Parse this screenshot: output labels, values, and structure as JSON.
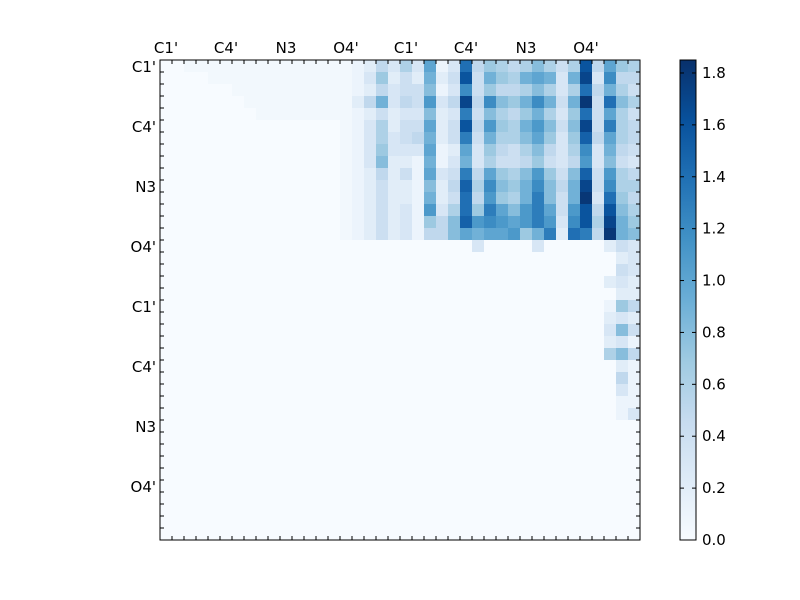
{
  "chart_data": {
    "type": "heatmap",
    "title": "",
    "xlabel": "",
    "ylabel": "",
    "x_tick_labels": [
      "C1'",
      "C4'",
      "N3",
      "O4'",
      "C1'",
      "C4'",
      "N3",
      "O4'"
    ],
    "y_tick_labels": [
      "C1'",
      "C4'",
      "N3",
      "O4'",
      "C1'",
      "C4'",
      "N3",
      "O4'"
    ],
    "rows": 40,
    "cols": 40,
    "colorbar": {
      "min": 0.0,
      "max": 1.85,
      "ticks": [
        "0.0",
        "0.2",
        "0.4",
        "0.6",
        "0.8",
        "1.0",
        "1.2",
        "1.4",
        "1.6",
        "1.8"
      ],
      "colormap": "Blues"
    },
    "colors": {
      "low": "#f7fbff",
      "high": "#08306b"
    },
    "upper_right_block": {
      "description_rows": [
        [
          0.05,
          0.1,
          0.2,
          0.5,
          0.3,
          0.6,
          0.3,
          1.0,
          0.1,
          0.3,
          1.4,
          0.5,
          0.7,
          0.6,
          0.5,
          0.6,
          0.8,
          0.6,
          0.4,
          0.6,
          1.6,
          0.5,
          1.0,
          0.7,
          0.6
        ],
        [
          0.05,
          0.1,
          0.3,
          0.7,
          0.2,
          0.4,
          0.2,
          0.9,
          0.2,
          0.4,
          1.6,
          0.4,
          0.9,
          0.7,
          0.6,
          0.9,
          1.0,
          0.9,
          0.3,
          0.9,
          1.7,
          0.3,
          1.2,
          0.5,
          0.5
        ],
        [
          0.05,
          0.1,
          0.2,
          0.5,
          0.3,
          0.4,
          0.4,
          0.8,
          0.1,
          0.3,
          1.2,
          0.4,
          0.7,
          0.5,
          0.5,
          0.6,
          0.8,
          0.6,
          0.3,
          0.6,
          1.4,
          0.5,
          0.9,
          0.6,
          0.4
        ],
        [
          0.05,
          0.2,
          0.5,
          0.9,
          0.3,
          0.5,
          0.4,
          1.1,
          0.3,
          0.5,
          1.7,
          0.5,
          1.2,
          0.8,
          0.7,
          0.9,
          1.2,
          0.9,
          0.4,
          0.9,
          1.8,
          0.4,
          1.4,
          0.8,
          0.6
        ],
        [
          0.05,
          0.1,
          0.2,
          0.4,
          0.2,
          0.3,
          0.3,
          0.8,
          0.2,
          0.3,
          1.3,
          0.4,
          0.8,
          0.6,
          0.5,
          0.7,
          0.9,
          0.6,
          0.3,
          0.7,
          1.4,
          0.4,
          1.0,
          0.6,
          0.4
        ],
        [
          0.05,
          0.1,
          0.3,
          0.6,
          0.2,
          0.4,
          0.4,
          1.0,
          0.2,
          0.4,
          1.6,
          0.5,
          1.1,
          0.7,
          0.6,
          0.9,
          1.1,
          0.8,
          0.4,
          0.8,
          1.7,
          0.4,
          1.3,
          0.6,
          0.5
        ],
        [
          0.05,
          0.1,
          0.3,
          0.6,
          0.3,
          0.4,
          0.5,
          0.9,
          0.2,
          0.4,
          1.3,
          0.4,
          0.9,
          0.6,
          0.6,
          0.8,
          1.0,
          0.7,
          0.3,
          0.7,
          1.5,
          0.5,
          1.0,
          0.6,
          0.5
        ],
        [
          0.05,
          0.1,
          0.3,
          0.7,
          0.3,
          0.3,
          0.3,
          1.0,
          0.1,
          0.2,
          1.0,
          0.3,
          0.7,
          0.5,
          0.4,
          0.6,
          0.8,
          0.5,
          0.3,
          0.6,
          1.2,
          0.3,
          0.9,
          0.5,
          0.4
        ],
        [
          0.05,
          0.1,
          0.3,
          0.8,
          0.2,
          0.2,
          0.1,
          0.9,
          0.1,
          0.3,
          0.9,
          0.3,
          0.6,
          0.4,
          0.4,
          0.5,
          0.7,
          0.4,
          0.3,
          0.5,
          1.1,
          0.3,
          0.8,
          0.4,
          0.3
        ],
        [
          0.05,
          0.1,
          0.2,
          0.5,
          0.2,
          0.4,
          0.1,
          1.0,
          0.3,
          0.4,
          1.3,
          0.5,
          1.0,
          0.7,
          0.6,
          0.8,
          1.1,
          0.7,
          0.4,
          0.8,
          1.5,
          0.4,
          1.1,
          0.6,
          0.5
        ],
        [
          0.05,
          0.1,
          0.2,
          0.4,
          0.2,
          0.2,
          0.1,
          0.8,
          0.2,
          0.5,
          1.5,
          0.6,
          1.2,
          0.8,
          0.7,
          0.9,
          1.2,
          0.8,
          0.5,
          0.9,
          1.7,
          0.4,
          1.2,
          0.6,
          0.6
        ],
        [
          0.05,
          0.1,
          0.2,
          0.4,
          0.2,
          0.2,
          0.1,
          0.9,
          0.2,
          0.4,
          1.4,
          0.5,
          1.1,
          0.7,
          0.6,
          0.9,
          1.3,
          0.8,
          0.4,
          0.9,
          1.8,
          0.3,
          1.4,
          0.7,
          0.5
        ],
        [
          0.05,
          0.1,
          0.2,
          0.4,
          0.2,
          0.3,
          0.1,
          1.1,
          0.3,
          0.6,
          1.4,
          0.7,
          1.3,
          1.0,
          0.8,
          1.1,
          1.3,
          1.0,
          0.4,
          1.1,
          1.6,
          0.5,
          1.6,
          0.8,
          0.6
        ],
        [
          0.05,
          0.1,
          0.2,
          0.4,
          0.2,
          0.3,
          0.1,
          0.7,
          0.5,
          0.8,
          1.5,
          1.1,
          1.2,
          1.1,
          1.0,
          1.1,
          1.3,
          1.1,
          0.3,
          1.2,
          1.6,
          0.6,
          1.7,
          0.9,
          0.7
        ],
        [
          0.05,
          0.1,
          0.2,
          0.4,
          0.2,
          0.3,
          0.1,
          0.5,
          0.5,
          0.8,
          1.0,
          0.9,
          1.0,
          1.0,
          1.1,
          0.7,
          0.9,
          1.3,
          0.2,
          1.4,
          1.3,
          0.5,
          1.8,
          0.9,
          0.8
        ]
      ]
    },
    "lower_right_block": {
      "description_rows": [
        [
          0.0,
          0.0,
          0.0,
          0.0,
          0.0,
          0.0,
          0.0,
          0.0,
          0.0,
          0.0,
          0.0,
          0.3,
          0.0,
          0.0,
          0.0,
          0.0,
          0.3,
          0.0,
          0.0,
          0.0,
          0.0,
          0.0,
          0.2,
          0.4,
          0.3
        ],
        [
          0.0,
          0.0,
          0.0,
          0.0,
          0.0,
          0.0,
          0.0,
          0.0,
          0.0,
          0.0,
          0.0,
          0.0,
          0.0,
          0.0,
          0.0,
          0.0,
          0.0,
          0.0,
          0.0,
          0.0,
          0.0,
          0.0,
          0.0,
          0.2,
          0.3
        ],
        [
          0.0,
          0.0,
          0.0,
          0.0,
          0.0,
          0.0,
          0.0,
          0.0,
          0.0,
          0.0,
          0.0,
          0.0,
          0.0,
          0.0,
          0.0,
          0.0,
          0.0,
          0.0,
          0.0,
          0.0,
          0.0,
          0.0,
          0.0,
          0.4,
          0.3
        ],
        [
          0.0,
          0.0,
          0.0,
          0.0,
          0.0,
          0.0,
          0.0,
          0.0,
          0.0,
          0.0,
          0.0,
          0.0,
          0.0,
          0.0,
          0.0,
          0.0,
          0.0,
          0.0,
          0.0,
          0.0,
          0.0,
          0.0,
          0.2,
          0.3,
          0.2
        ],
        [
          0.0,
          0.0,
          0.0,
          0.0,
          0.0,
          0.0,
          0.0,
          0.0,
          0.0,
          0.0,
          0.0,
          0.0,
          0.0,
          0.0,
          0.0,
          0.0,
          0.0,
          0.0,
          0.0,
          0.0,
          0.0,
          0.0,
          0.0,
          0.2,
          0.2
        ],
        [
          0.0,
          0.0,
          0.0,
          0.0,
          0.0,
          0.0,
          0.0,
          0.0,
          0.0,
          0.0,
          0.0,
          0.0,
          0.0,
          0.0,
          0.0,
          0.0,
          0.0,
          0.0,
          0.0,
          0.0,
          0.0,
          0.0,
          0.1,
          0.7,
          0.5
        ],
        [
          0.0,
          0.0,
          0.0,
          0.0,
          0.0,
          0.0,
          0.0,
          0.0,
          0.0,
          0.0,
          0.0,
          0.0,
          0.0,
          0.0,
          0.0,
          0.0,
          0.0,
          0.0,
          0.0,
          0.0,
          0.0,
          0.0,
          0.2,
          0.3,
          0.2
        ],
        [
          0.0,
          0.0,
          0.0,
          0.0,
          0.0,
          0.0,
          0.0,
          0.0,
          0.0,
          0.0,
          0.0,
          0.0,
          0.0,
          0.0,
          0.0,
          0.0,
          0.0,
          0.0,
          0.0,
          0.0,
          0.0,
          0.0,
          0.3,
          0.8,
          0.4
        ],
        [
          0.0,
          0.0,
          0.0,
          0.0,
          0.0,
          0.0,
          0.0,
          0.0,
          0.0,
          0.0,
          0.0,
          0.0,
          0.0,
          0.0,
          0.0,
          0.0,
          0.0,
          0.0,
          0.0,
          0.0,
          0.0,
          0.0,
          0.2,
          0.3,
          0.1
        ],
        [
          0.0,
          0.0,
          0.0,
          0.0,
          0.0,
          0.0,
          0.0,
          0.0,
          0.0,
          0.0,
          0.0,
          0.0,
          0.0,
          0.0,
          0.0,
          0.0,
          0.0,
          0.0,
          0.0,
          0.0,
          0.0,
          0.0,
          0.6,
          0.8,
          0.5
        ],
        [
          0.0,
          0.0,
          0.0,
          0.0,
          0.0,
          0.0,
          0.0,
          0.0,
          0.0,
          0.0,
          0.0,
          0.0,
          0.0,
          0.0,
          0.0,
          0.0,
          0.0,
          0.0,
          0.0,
          0.0,
          0.0,
          0.0,
          0.0,
          0.2,
          0.1
        ],
        [
          0.0,
          0.0,
          0.0,
          0.0,
          0.0,
          0.0,
          0.0,
          0.0,
          0.0,
          0.0,
          0.0,
          0.0,
          0.0,
          0.0,
          0.0,
          0.0,
          0.0,
          0.0,
          0.0,
          0.0,
          0.0,
          0.0,
          0.0,
          0.5,
          0.1
        ],
        [
          0.0,
          0.0,
          0.0,
          0.0,
          0.0,
          0.0,
          0.0,
          0.0,
          0.0,
          0.0,
          0.0,
          0.0,
          0.0,
          0.0,
          0.0,
          0.0,
          0.0,
          0.0,
          0.0,
          0.0,
          0.0,
          0.0,
          0.0,
          0.3,
          0.1
        ],
        [
          0.0,
          0.0,
          0.0,
          0.0,
          0.0,
          0.0,
          0.0,
          0.0,
          0.0,
          0.0,
          0.0,
          0.0,
          0.0,
          0.0,
          0.0,
          0.0,
          0.0,
          0.0,
          0.0,
          0.0,
          0.0,
          0.0,
          0.0,
          0.1,
          0.1
        ],
        [
          0.0,
          0.0,
          0.0,
          0.0,
          0.0,
          0.0,
          0.0,
          0.0,
          0.0,
          0.0,
          0.0,
          0.0,
          0.0,
          0.0,
          0.0,
          0.0,
          0.0,
          0.0,
          0.0,
          0.0,
          0.0,
          0.0,
          0.0,
          0.1,
          0.3
        ]
      ]
    },
    "upper_left_block": {
      "description_rows": [
        [
          0.0,
          0.0,
          0.05,
          0.05,
          0.05,
          0.05,
          0.05,
          0.05,
          0.05,
          0.05,
          0.05,
          0.05,
          0.05,
          0.05,
          0.05
        ],
        [
          0.0,
          0.0,
          0.0,
          0.0,
          0.05,
          0.05,
          0.05,
          0.05,
          0.05,
          0.05,
          0.05,
          0.05,
          0.05,
          0.05,
          0.05
        ],
        [
          0.0,
          0.0,
          0.0,
          0.0,
          0.0,
          0.0,
          0.05,
          0.05,
          0.05,
          0.05,
          0.05,
          0.05,
          0.05,
          0.05,
          0.05
        ],
        [
          0.0,
          0.0,
          0.0,
          0.0,
          0.0,
          0.0,
          0.0,
          0.05,
          0.05,
          0.05,
          0.05,
          0.05,
          0.05,
          0.05,
          0.05
        ],
        [
          0.0,
          0.0,
          0.0,
          0.0,
          0.0,
          0.0,
          0.0,
          0.0,
          0.05,
          0.05,
          0.05,
          0.05,
          0.05,
          0.05,
          0.05
        ]
      ]
    }
  }
}
